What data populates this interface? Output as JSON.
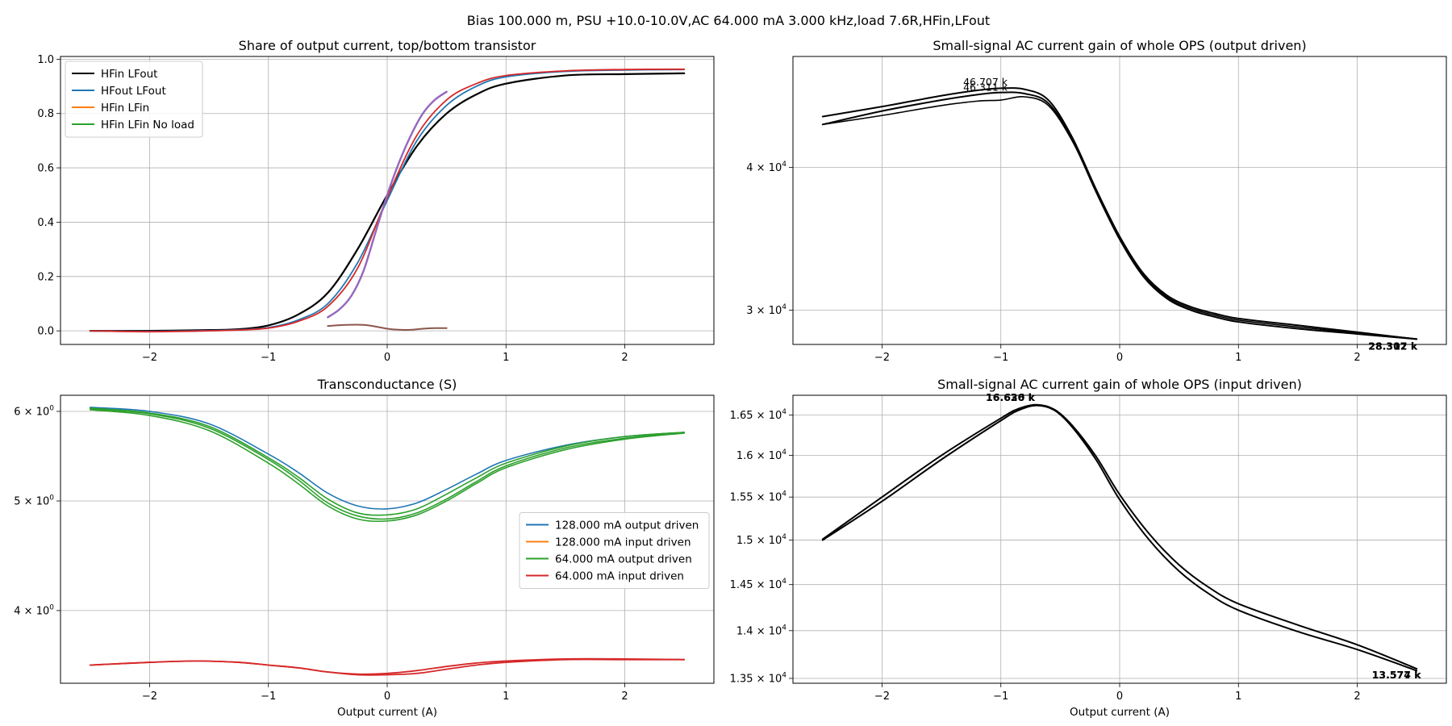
{
  "suptitle": "Bias 100.000 m, PSU +10.0-10.0V,AC 64.000 mA 3.000 kHz,load 7.6R,HFin,LFout",
  "colors": {
    "black": "#000000",
    "blue": "#1f77b4",
    "orange": "#ff7f0e",
    "green": "#2ca02c",
    "red": "#d62728",
    "purple": "#9467bd",
    "brown": "#8c564b"
  },
  "chart_data": [
    {
      "id": "share",
      "type": "line",
      "title": "Share of output current, top/bottom transistor",
      "xlabel": "",
      "ylabel": "",
      "xlim": [
        -2.75,
        2.75
      ],
      "ylim": [
        -0.05,
        1.01
      ],
      "xticks": [
        -2,
        -1,
        0,
        1,
        2
      ],
      "xtick_labels": [
        "−2",
        "−1",
        "0",
        "1",
        "2"
      ],
      "yticks": [
        0.0,
        0.2,
        0.4,
        0.6,
        0.8,
        1.0
      ],
      "ytick_labels": [
        "0.0",
        "0.2",
        "0.4",
        "0.6",
        "0.8",
        "1.0"
      ],
      "grid": true,
      "legend_position": "upper-left",
      "legend": [
        {
          "name": "HFin LFout",
          "color": "#000000"
        },
        {
          "name": "HFout LFout",
          "color": "#1f77b4"
        },
        {
          "name": "HFin LFin",
          "color": "#ff7f0e"
        },
        {
          "name": "HFin LFin No load",
          "color": "#2ca02c"
        }
      ],
      "series": [
        {
          "color": "#000000",
          "width": 2.2,
          "x": [
            -2.5,
            -2,
            -1.5,
            -1.25,
            -1,
            -0.75,
            -0.5,
            -0.25,
            0,
            0.25,
            0.5,
            0.75,
            1,
            1.5,
            2,
            2.5
          ],
          "y": [
            0,
            0,
            0.003,
            0.006,
            0.02,
            0.06,
            0.14,
            0.3,
            0.5,
            0.68,
            0.8,
            0.87,
            0.91,
            0.94,
            0.945,
            0.948
          ]
        },
        {
          "color": "#1f77b4",
          "width": 1.8,
          "x": [
            -2.5,
            -2,
            -1.5,
            -1.25,
            -1,
            -0.75,
            -0.5,
            -0.25,
            0,
            0.25,
            0.5,
            0.75,
            1,
            1.5,
            2,
            2.5
          ],
          "y": [
            0,
            -0.002,
            0.001,
            0.004,
            0.012,
            0.04,
            0.1,
            0.25,
            0.48,
            0.7,
            0.83,
            0.9,
            0.935,
            0.955,
            0.96,
            0.962
          ]
        },
        {
          "color": "#d62728",
          "width": 1.8,
          "x": [
            -2.5,
            -2,
            -1.5,
            -1.25,
            -1,
            -0.75,
            -0.5,
            -0.25,
            0,
            0.25,
            0.5,
            0.75,
            1,
            1.5,
            2,
            2.5
          ],
          "y": [
            0,
            -0.003,
            0,
            0.003,
            0.01,
            0.035,
            0.09,
            0.23,
            0.49,
            0.72,
            0.85,
            0.91,
            0.94,
            0.957,
            0.962,
            0.963
          ]
        },
        {
          "color": "#9467bd",
          "width": 2.4,
          "x": [
            -0.5,
            -0.4,
            -0.3,
            -0.2,
            -0.1,
            0,
            0.1,
            0.2,
            0.3,
            0.4,
            0.5
          ],
          "y": [
            0.05,
            0.08,
            0.13,
            0.22,
            0.36,
            0.5,
            0.62,
            0.72,
            0.8,
            0.85,
            0.88
          ]
        },
        {
          "color": "#8c564b",
          "width": 2.0,
          "x": [
            -0.5,
            -0.35,
            -0.2,
            -0.1,
            0,
            0.1,
            0.2,
            0.3,
            0.4,
            0.5
          ],
          "y": [
            0.018,
            0.022,
            0.022,
            0.016,
            0.008,
            0.004,
            0.004,
            0.008,
            0.01,
            0.01
          ]
        }
      ]
    },
    {
      "id": "gain_out",
      "type": "line",
      "title": "Small-signal AC current gain of whole OPS (output driven)",
      "xlabel": "",
      "ylabel": "",
      "yscale": "log",
      "xlim": [
        -2.75,
        2.75
      ],
      "ylim": [
        28000,
        50000
      ],
      "xticks": [
        -2,
        -1,
        0,
        1,
        2
      ],
      "xtick_labels": [
        "−2",
        "−1",
        "0",
        "1",
        "2"
      ],
      "yticks": [
        30000,
        40000
      ],
      "ytick_labels": [
        {
          "base": "3 × 10",
          "exp": "4"
        },
        {
          "base": "4 × 10",
          "exp": "4"
        }
      ],
      "grid": true,
      "annotations": [
        {
          "text": "46.707 k",
          "x": -1.13,
          "y": 47150,
          "bold": false
        },
        {
          "text": "46.311 k",
          "x": -1.13,
          "y": 46650,
          "bold": false
        },
        {
          "text": "28.307 k",
          "x": 2.3,
          "y": 27700,
          "bold": true
        },
        {
          "text": "28.312 k",
          "x": 2.3,
          "y": 27700,
          "bold": true
        }
      ],
      "series": [
        {
          "color": "#000000",
          "width": 2.0,
          "x": [
            -2.5,
            -2,
            -1.5,
            -1.2,
            -1,
            -0.8,
            -0.6,
            -0.4,
            -0.2,
            0,
            0.2,
            0.4,
            0.6,
            0.8,
            1,
            1.5,
            2,
            2.5
          ],
          "y": [
            44300,
            45200,
            46200,
            46700,
            46900,
            46800,
            45800,
            42500,
            38300,
            34800,
            32300,
            30900,
            30200,
            29800,
            29500,
            29100,
            28700,
            28300
          ]
        },
        {
          "color": "#000000",
          "width": 2.0,
          "x": [
            -2.5,
            -2,
            -1.5,
            -1.2,
            -1,
            -0.8,
            -0.6,
            -0.4,
            -0.2,
            0,
            0.2,
            0.4,
            0.6,
            0.8,
            1,
            1.5,
            2,
            2.5
          ],
          "y": [
            43600,
            44800,
            45800,
            46300,
            46500,
            46400,
            45500,
            42300,
            38100,
            34600,
            32100,
            30700,
            30000,
            29600,
            29300,
            28900,
            28600,
            28300
          ]
        },
        {
          "color": "#000000",
          "width": 1.6,
          "x": [
            -2.5,
            -2,
            -1.5,
            -1.2,
            -1,
            -0.8,
            -0.6,
            -0.4,
            -0.2,
            0,
            0.2,
            0.4,
            0.6,
            0.8,
            1,
            1.5,
            2,
            2.5
          ],
          "y": [
            43600,
            44400,
            45300,
            45700,
            45800,
            46100,
            45300,
            42200,
            38200,
            34700,
            32200,
            30800,
            30100,
            29700,
            29400,
            29000,
            28650,
            28320
          ]
        }
      ]
    },
    {
      "id": "gm",
      "type": "line",
      "title": "Transconductance (S)",
      "xlabel": "Output current (A)",
      "ylabel": "",
      "yscale": "log",
      "xlim": [
        -2.75,
        2.75
      ],
      "ylim": [
        3.45,
        6.2
      ],
      "xticks": [
        -2,
        -1,
        0,
        1,
        2
      ],
      "xtick_labels": [
        "−2",
        "−1",
        "0",
        "1",
        "2"
      ],
      "yticks": [
        4,
        5,
        6
      ],
      "ytick_labels": [
        {
          "base": "4 × 10",
          "exp": "0"
        },
        {
          "base": "5 × 10",
          "exp": "0"
        },
        {
          "base": "6 × 10",
          "exp": "0"
        }
      ],
      "grid": true,
      "legend_position": "center-right",
      "legend": [
        {
          "name": "128.000 mA output driven",
          "color": "#1f77b4"
        },
        {
          "name": "128.000 mA input driven",
          "color": "#ff7f0e"
        },
        {
          "name": "64.000 mA output driven",
          "color": "#2ca02c"
        },
        {
          "name": "64.000 mA input driven",
          "color": "#d62728"
        }
      ],
      "series": [
        {
          "color": "#1f77b4",
          "width": 1.6,
          "x": [
            -2.5,
            -2,
            -1.5,
            -1,
            -0.75,
            -0.5,
            -0.25,
            0,
            0.25,
            0.5,
            0.75,
            1,
            1.5,
            2,
            2.5
          ],
          "y": [
            6.05,
            6.0,
            5.85,
            5.5,
            5.3,
            5.08,
            4.95,
            4.92,
            4.98,
            5.12,
            5.28,
            5.43,
            5.6,
            5.7,
            5.75
          ]
        },
        {
          "color": "#2ca02c",
          "width": 1.6,
          "x": [
            -2.5,
            -2,
            -1.5,
            -1,
            -0.75,
            -0.5,
            -0.25,
            0,
            0.25,
            0.5,
            0.75,
            1,
            1.5,
            2,
            2.5
          ],
          "y": [
            6.04,
            5.98,
            5.82,
            5.46,
            5.25,
            5.02,
            4.88,
            4.86,
            4.92,
            5.07,
            5.24,
            5.4,
            5.59,
            5.7,
            5.75
          ]
        },
        {
          "color": "#2ca02c",
          "width": 1.6,
          "x": [
            -2.5,
            -2,
            -1.5,
            -1,
            -0.75,
            -0.5,
            -0.25,
            0,
            0.25,
            0.5,
            0.75,
            1,
            1.5,
            2,
            2.5
          ],
          "y": [
            6.03,
            5.97,
            5.8,
            5.44,
            5.22,
            4.98,
            4.85,
            4.82,
            4.88,
            5.02,
            5.2,
            5.37,
            5.57,
            5.68,
            5.75
          ]
        },
        {
          "color": "#2ca02c",
          "width": 1.6,
          "x": [
            -2.5,
            -2,
            -1.5,
            -1,
            -0.75,
            -0.5,
            -0.25,
            0,
            0.25,
            0.5,
            0.75,
            1,
            1.5,
            2,
            2.5
          ],
          "y": [
            6.02,
            5.95,
            5.77,
            5.4,
            5.18,
            4.95,
            4.82,
            4.8,
            4.86,
            5.0,
            5.18,
            5.35,
            5.55,
            5.67,
            5.74
          ]
        },
        {
          "color": "#d62728",
          "width": 1.8,
          "x": [
            -2.5,
            -2,
            -1.6,
            -1.25,
            -1,
            -0.75,
            -0.5,
            -0.25,
            0,
            0.25,
            0.5,
            0.75,
            1,
            1.5,
            2,
            2.5
          ],
          "y": [
            3.58,
            3.6,
            3.61,
            3.6,
            3.58,
            3.56,
            3.53,
            3.51,
            3.51,
            3.52,
            3.55,
            3.58,
            3.6,
            3.62,
            3.62,
            3.62
          ]
        },
        {
          "color": "#d62728",
          "width": 1.8,
          "x": [
            -2.5,
            -2,
            -1.6,
            -1.25,
            -1,
            -0.75,
            -0.5,
            -0.25,
            0,
            0.25,
            0.5,
            0.75,
            1,
            1.5,
            2,
            2.5
          ],
          "y": [
            3.58,
            3.6,
            3.61,
            3.6,
            3.58,
            3.56,
            3.53,
            3.515,
            3.52,
            3.54,
            3.57,
            3.595,
            3.61,
            3.625,
            3.625,
            3.62
          ]
        }
      ]
    },
    {
      "id": "gain_in",
      "type": "line",
      "title": "Small-signal AC current gain of whole OPS (input driven)",
      "xlabel": "Output current (A)",
      "ylabel": "",
      "yscale": "log",
      "xlim": [
        -2.75,
        2.75
      ],
      "ylim": [
        13450,
        16750
      ],
      "xticks": [
        -2,
        -1,
        0,
        1,
        2
      ],
      "xtick_labels": [
        "−2",
        "−1",
        "0",
        "1",
        "2"
      ],
      "yticks": [
        13500,
        14000,
        14500,
        15000,
        15500,
        16000,
        16500
      ],
      "ytick_labels": [
        {
          "base": "1.35 × 10",
          "exp": "4"
        },
        {
          "base": "1.4 × 10",
          "exp": "4"
        },
        {
          "base": "1.45 × 10",
          "exp": "4"
        },
        {
          "base": "1.5 × 10",
          "exp": "4"
        },
        {
          "base": "1.55 × 10",
          "exp": "4"
        },
        {
          "base": "1.6 × 10",
          "exp": "4"
        },
        {
          "base": "1.65 × 10",
          "exp": "4"
        }
      ],
      "grid": true,
      "annotations": [
        {
          "text": "16.626 k",
          "x": -0.92,
          "y": 16680,
          "bold": true
        },
        {
          "text": "16.630 k",
          "x": -0.92,
          "y": 16680,
          "bold": true
        },
        {
          "text": "13.574 k",
          "x": 2.33,
          "y": 13500,
          "bold": true
        },
        {
          "text": "13.577 k",
          "x": 2.33,
          "y": 13500,
          "bold": true
        }
      ],
      "series": [
        {
          "color": "#000000",
          "width": 2.0,
          "x": [
            -2.5,
            -2,
            -1.5,
            -1,
            -0.85,
            -0.7,
            -0.55,
            -0.4,
            -0.2,
            0,
            0.25,
            0.5,
            0.75,
            1,
            1.5,
            2,
            2.5
          ],
          "y": [
            15000,
            15450,
            15950,
            16430,
            16560,
            16620,
            16560,
            16350,
            15950,
            15470,
            15000,
            14650,
            14400,
            14220,
            13990,
            13800,
            13580
          ]
        },
        {
          "color": "#000000",
          "width": 2.0,
          "x": [
            -2.5,
            -2,
            -1.5,
            -1,
            -0.85,
            -0.7,
            -0.55,
            -0.4,
            -0.2,
            0,
            0.25,
            0.5,
            0.75,
            1,
            1.5,
            2,
            2.5
          ],
          "y": [
            15010,
            15500,
            16000,
            16460,
            16580,
            16630,
            16570,
            16370,
            15990,
            15530,
            15070,
            14720,
            14470,
            14290,
            14060,
            13850,
            13600
          ]
        }
      ]
    }
  ]
}
